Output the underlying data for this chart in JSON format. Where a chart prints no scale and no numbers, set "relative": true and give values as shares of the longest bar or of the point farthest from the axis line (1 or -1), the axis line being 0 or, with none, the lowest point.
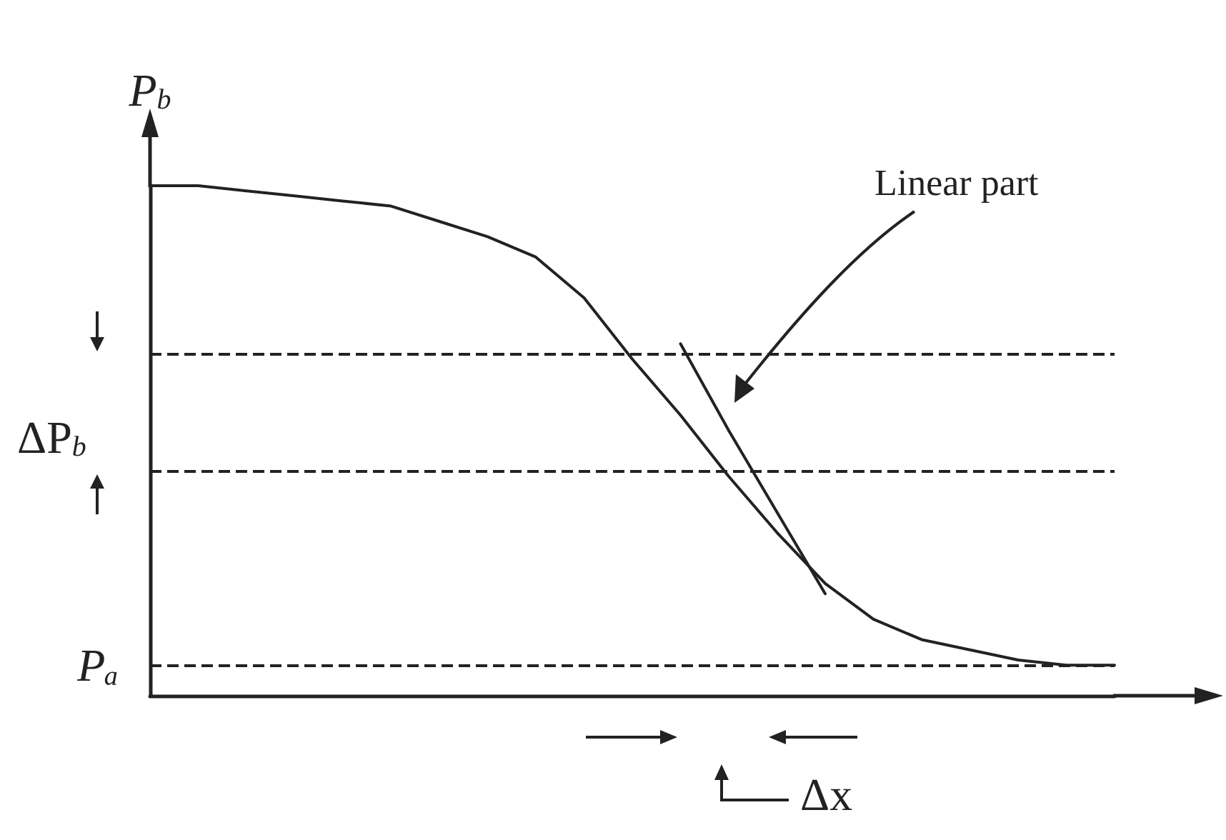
{
  "chart_data": {
    "type": "line",
    "relative": true,
    "ylabel": "P$_{b}$",
    "categories": [
      null,
      null,
      null,
      null,
      null,
      null,
      null,
      null,
      null,
      null,
      null,
      null,
      null,
      null,
      null,
      null,
      null,
      null,
      null,
      null,
      null
    ],
    "series": [
      {
        "color": "#222222",
        "values": [
          1,
          1,
          0.99,
          0.98,
          0.97,
          0.96,
          0.93,
          0.9,
          0.86,
          0.78,
          0.66,
          0.55,
          0.43,
          0.32,
          0.22,
          0.15,
          0.11,
          0.09,
          0.07,
          0.06,
          0.06
        ]
      },
      {
        "color": "#222222",
        "values": [
          null,
          null,
          null,
          null,
          null,
          null,
          null,
          null,
          null,
          null,
          null,
          0.69,
          0.52,
          0.36,
          0.2,
          null,
          null,
          null,
          null,
          null,
          null
        ]
      }
    ],
    "ref_lines": [
      {
        "axis": "y",
        "value": 0.67,
        "line_style": "dashed",
        "color": "#222222"
      },
      {
        "axis": "y",
        "value": 0.44,
        "line_style": "dashed",
        "color": "#222222"
      },
      {
        "axis": "y",
        "value": 0.06,
        "label": "Pₐ",
        "line_style": "dashed",
        "color": "#222222"
      }
    ],
    "annotations": [
      "Linear part",
      "ΔP$_{b}$",
      "Δx"
    ],
    "marker": "none",
    "line_style": "solid"
  }
}
